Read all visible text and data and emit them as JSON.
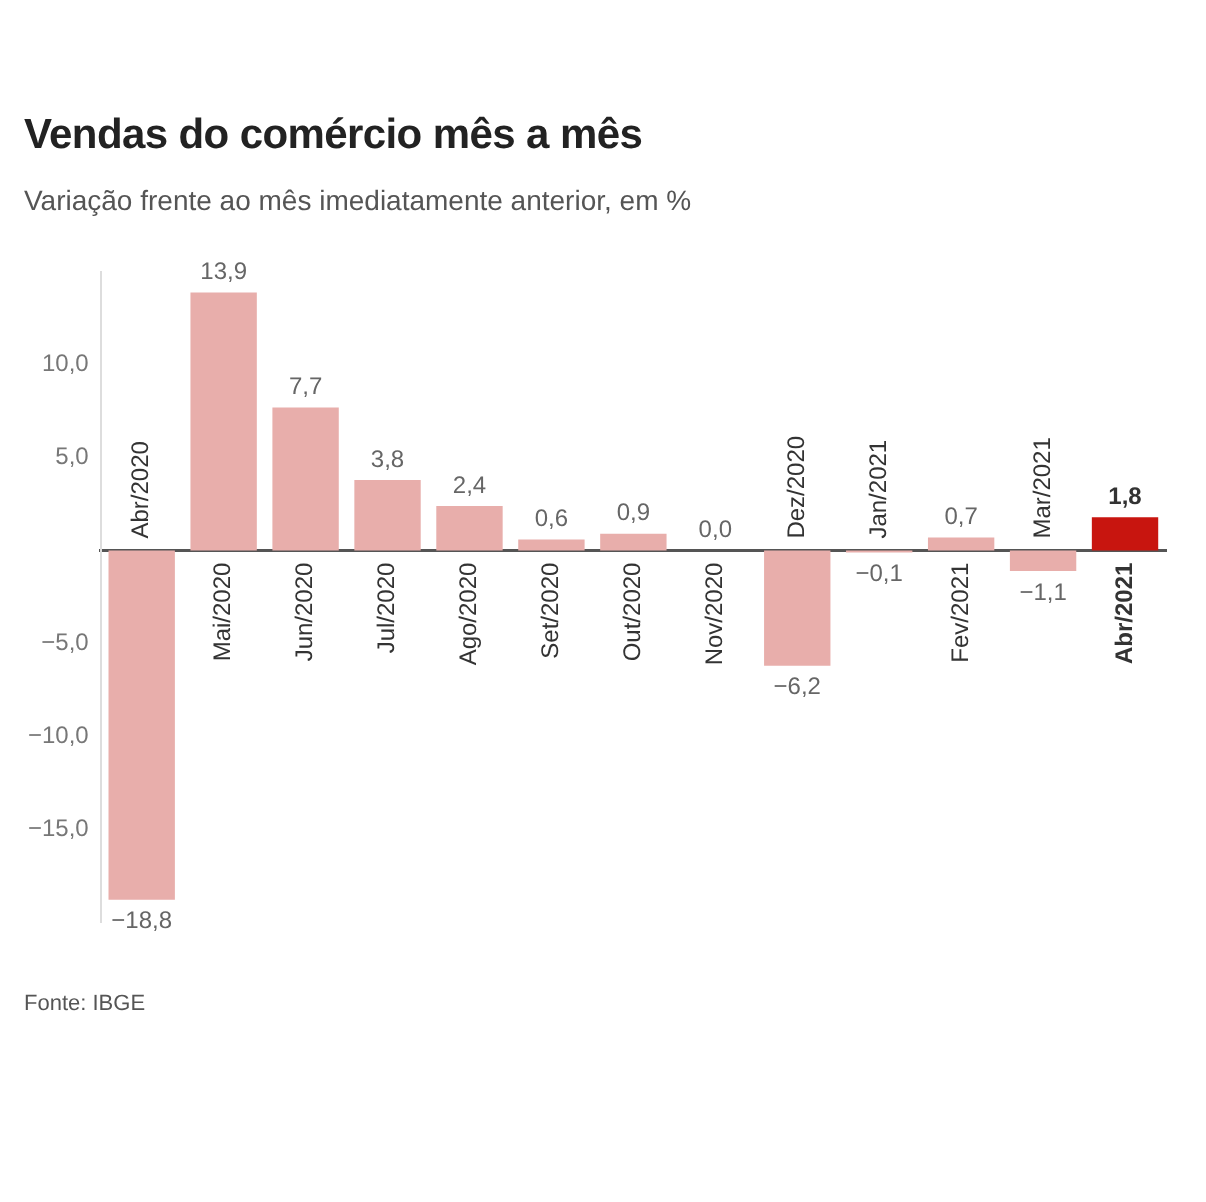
{
  "chart_data": {
    "type": "bar",
    "title": "Vendas do comércio mês a mês",
    "subtitle": "Variação frente ao mês imediatamente anterior, em %",
    "categories": [
      "Abr/2020",
      "Mai/2020",
      "Jun/2020",
      "Jul/2020",
      "Ago/2020",
      "Set/2020",
      "Out/2020",
      "Nov/2020",
      "Dez/2020",
      "Jan/2021",
      "Fev/2021",
      "Mar/2021",
      "Abr/2021"
    ],
    "values": [
      -18.8,
      13.9,
      7.7,
      3.8,
      2.4,
      0.6,
      0.9,
      0.0,
      -6.2,
      -0.1,
      0.7,
      -1.1,
      1.8
    ],
    "colors": [
      "#e8aeab",
      "#e8aeab",
      "#e8aeab",
      "#e8aeab",
      "#e8aeab",
      "#e8aeab",
      "#e8aeab",
      "#e8aeab",
      "#e8aeab",
      "#e8aeab",
      "#e8aeab",
      "#e8aeab",
      "#c8150f"
    ],
    "value_labels": [
      "−18,8",
      "13,9",
      "7,7",
      "3,8",
      "2,4",
      "0,6",
      "0,9",
      "0,0",
      "−6,2",
      "−0,1",
      "0,7",
      "−1,1",
      "1,8"
    ],
    "yticks": [
      {
        "value": -15,
        "label": "−15,0"
      },
      {
        "value": -10,
        "label": "−10,0"
      },
      {
        "value": -5,
        "label": "−5,0"
      },
      {
        "value": 0,
        "label": null
      },
      {
        "value": 5,
        "label": "5,0"
      },
      {
        "value": 10,
        "label": "10,0"
      }
    ],
    "ylim": [
      -20,
      15
    ],
    "grid": false,
    "legend": false,
    "annotations": [
      "Fonte: IBGE"
    ]
  }
}
